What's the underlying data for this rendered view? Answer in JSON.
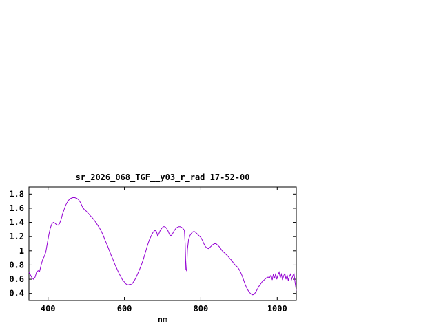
{
  "window": {
    "background": "#ffffff"
  },
  "chart_data": {
    "type": "line",
    "title": "sr_2026_068_TGF__y03_r_rad 17-52-00",
    "xlabel": "nm",
    "ylabel": "",
    "xlim": [
      350,
      1050
    ],
    "ylim": [
      0.3,
      1.9
    ],
    "xticks": [
      400,
      600,
      800,
      1000
    ],
    "yticks": [
      0.4,
      0.6,
      0.8,
      1,
      1.2,
      1.4,
      1.6,
      1.8
    ],
    "grid": false,
    "legend": "none",
    "axis_color": "#000000",
    "series": [
      {
        "name": "sr_2026_068_TGF__y03_r_rad",
        "color": "#9400d3",
        "points": [
          [
            350,
            0.7
          ],
          [
            354,
            0.66
          ],
          [
            358,
            0.62
          ],
          [
            362,
            0.6
          ],
          [
            366,
            0.63
          ],
          [
            370,
            0.7
          ],
          [
            374,
            0.72
          ],
          [
            378,
            0.71
          ],
          [
            382,
            0.8
          ],
          [
            386,
            0.88
          ],
          [
            390,
            0.92
          ],
          [
            394,
            0.98
          ],
          [
            398,
            1.1
          ],
          [
            402,
            1.22
          ],
          [
            406,
            1.32
          ],
          [
            410,
            1.38
          ],
          [
            414,
            1.4
          ],
          [
            418,
            1.39
          ],
          [
            422,
            1.37
          ],
          [
            426,
            1.36
          ],
          [
            430,
            1.38
          ],
          [
            434,
            1.44
          ],
          [
            438,
            1.52
          ],
          [
            442,
            1.58
          ],
          [
            446,
            1.64
          ],
          [
            450,
            1.68
          ],
          [
            455,
            1.72
          ],
          [
            460,
            1.74
          ],
          [
            465,
            1.75
          ],
          [
            470,
            1.75
          ],
          [
            475,
            1.74
          ],
          [
            480,
            1.72
          ],
          [
            485,
            1.68
          ],
          [
            490,
            1.62
          ],
          [
            495,
            1.58
          ],
          [
            500,
            1.56
          ],
          [
            505,
            1.53
          ],
          [
            510,
            1.5
          ],
          [
            515,
            1.47
          ],
          [
            520,
            1.44
          ],
          [
            525,
            1.4
          ],
          [
            530,
            1.36
          ],
          [
            535,
            1.32
          ],
          [
            540,
            1.27
          ],
          [
            545,
            1.21
          ],
          [
            550,
            1.14
          ],
          [
            555,
            1.08
          ],
          [
            560,
            1.01
          ],
          [
            565,
            0.94
          ],
          [
            570,
            0.88
          ],
          [
            575,
            0.81
          ],
          [
            580,
            0.75
          ],
          [
            585,
            0.69
          ],
          [
            590,
            0.64
          ],
          [
            595,
            0.59
          ],
          [
            600,
            0.56
          ],
          [
            605,
            0.53
          ],
          [
            610,
            0.52
          ],
          [
            615,
            0.53
          ],
          [
            618,
            0.52
          ],
          [
            622,
            0.55
          ],
          [
            626,
            0.58
          ],
          [
            630,
            0.62
          ],
          [
            635,
            0.68
          ],
          [
            640,
            0.74
          ],
          [
            645,
            0.81
          ],
          [
            650,
            0.89
          ],
          [
            655,
            0.98
          ],
          [
            660,
            1.07
          ],
          [
            665,
            1.15
          ],
          [
            670,
            1.21
          ],
          [
            675,
            1.26
          ],
          [
            680,
            1.29
          ],
          [
            684,
            1.27
          ],
          [
            687,
            1.21
          ],
          [
            690,
            1.24
          ],
          [
            694,
            1.29
          ],
          [
            698,
            1.32
          ],
          [
            702,
            1.34
          ],
          [
            706,
            1.34
          ],
          [
            710,
            1.32
          ],
          [
            714,
            1.28
          ],
          [
            718,
            1.23
          ],
          [
            722,
            1.21
          ],
          [
            726,
            1.24
          ],
          [
            730,
            1.28
          ],
          [
            734,
            1.31
          ],
          [
            738,
            1.33
          ],
          [
            742,
            1.34
          ],
          [
            746,
            1.34
          ],
          [
            750,
            1.33
          ],
          [
            754,
            1.31
          ],
          [
            757,
            1.29
          ],
          [
            759,
            1.1
          ],
          [
            761,
            0.74
          ],
          [
            763,
            0.72
          ],
          [
            765,
            1.02
          ],
          [
            768,
            1.16
          ],
          [
            772,
            1.22
          ],
          [
            776,
            1.25
          ],
          [
            780,
            1.27
          ],
          [
            784,
            1.27
          ],
          [
            788,
            1.25
          ],
          [
            792,
            1.23
          ],
          [
            796,
            1.21
          ],
          [
            800,
            1.19
          ],
          [
            804,
            1.15
          ],
          [
            808,
            1.1
          ],
          [
            812,
            1.06
          ],
          [
            816,
            1.04
          ],
          [
            820,
            1.03
          ],
          [
            824,
            1.05
          ],
          [
            828,
            1.07
          ],
          [
            832,
            1.09
          ],
          [
            836,
            1.1
          ],
          [
            840,
            1.1
          ],
          [
            844,
            1.08
          ],
          [
            848,
            1.06
          ],
          [
            852,
            1.03
          ],
          [
            856,
            1.0
          ],
          [
            860,
            0.98
          ],
          [
            864,
            0.96
          ],
          [
            868,
            0.94
          ],
          [
            872,
            0.92
          ],
          [
            876,
            0.89
          ],
          [
            880,
            0.87
          ],
          [
            884,
            0.84
          ],
          [
            888,
            0.81
          ],
          [
            892,
            0.79
          ],
          [
            896,
            0.77
          ],
          [
            900,
            0.74
          ],
          [
            904,
            0.7
          ],
          [
            908,
            0.65
          ],
          [
            912,
            0.59
          ],
          [
            916,
            0.53
          ],
          [
            920,
            0.48
          ],
          [
            924,
            0.44
          ],
          [
            928,
            0.41
          ],
          [
            932,
            0.39
          ],
          [
            936,
            0.38
          ],
          [
            940,
            0.39
          ],
          [
            944,
            0.42
          ],
          [
            948,
            0.46
          ],
          [
            952,
            0.5
          ],
          [
            956,
            0.53
          ],
          [
            960,
            0.56
          ],
          [
            964,
            0.58
          ],
          [
            968,
            0.6
          ],
          [
            972,
            0.62
          ],
          [
            976,
            0.63
          ],
          [
            980,
            0.62
          ],
          [
            984,
            0.66
          ],
          [
            987,
            0.59
          ],
          [
            990,
            0.67
          ],
          [
            993,
            0.61
          ],
          [
            996,
            0.68
          ],
          [
            999,
            0.6
          ],
          [
            1002,
            0.66
          ],
          [
            1005,
            0.7
          ],
          [
            1008,
            0.62
          ],
          [
            1011,
            0.67
          ],
          [
            1014,
            0.59
          ],
          [
            1017,
            0.65
          ],
          [
            1020,
            0.68
          ],
          [
            1023,
            0.6
          ],
          [
            1026,
            0.66
          ],
          [
            1029,
            0.58
          ],
          [
            1032,
            0.64
          ],
          [
            1035,
            0.67
          ],
          [
            1038,
            0.6
          ],
          [
            1041,
            0.65
          ],
          [
            1044,
            0.68
          ],
          [
            1047,
            0.55
          ],
          [
            1050,
            0.44
          ]
        ]
      }
    ]
  }
}
